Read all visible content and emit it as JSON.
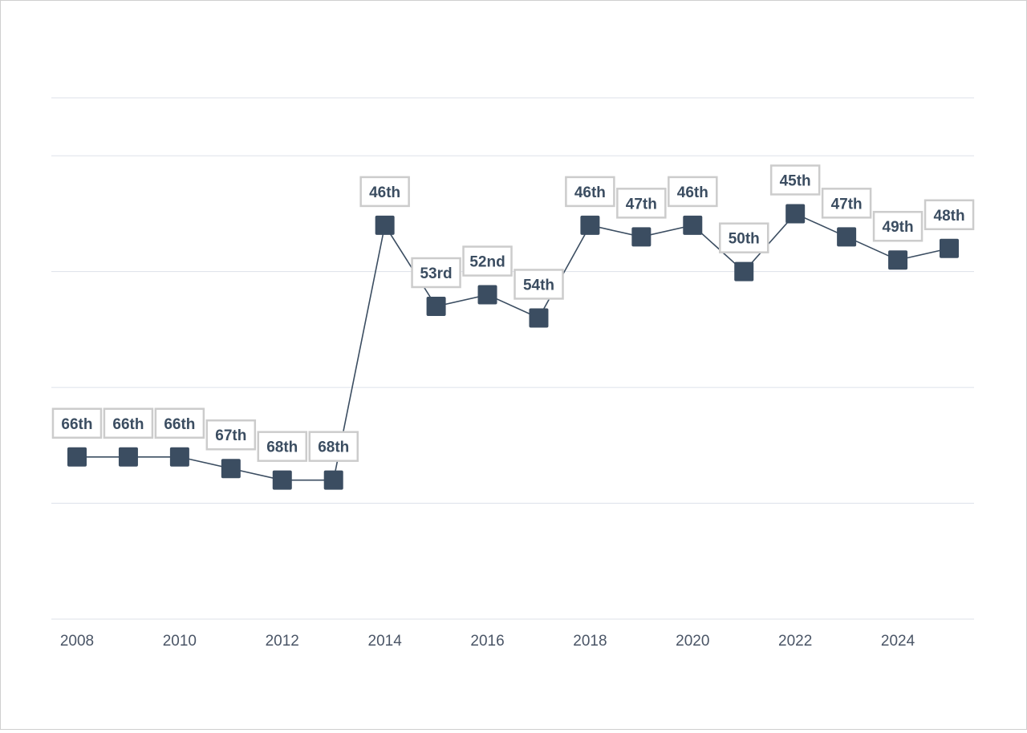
{
  "chart_data": {
    "type": "line",
    "title": "",
    "xlabel": "",
    "ylabel": "",
    "x": [
      2008,
      2009,
      2010,
      2011,
      2012,
      2013,
      2014,
      2015,
      2016,
      2017,
      2018,
      2019,
      2020,
      2021,
      2022,
      2023,
      2024,
      2025
    ],
    "values": [
      66,
      66,
      66,
      67,
      68,
      68,
      46,
      53,
      52,
      54,
      46,
      47,
      46,
      50,
      45,
      47,
      49,
      48
    ],
    "data_labels": [
      "66th",
      "66th",
      "66th",
      "67th",
      "68th",
      "68th",
      "46th",
      "53rd",
      "52nd",
      "54th",
      "46th",
      "47th",
      "46th",
      "50th",
      "45th",
      "47th",
      "49th",
      "48th"
    ],
    "x_ticks": [
      "2008",
      "2010",
      "2012",
      "2014",
      "2016",
      "2018",
      "2020",
      "2022",
      "2024"
    ],
    "ylim": [
      35,
      80
    ],
    "y_reversed": true,
    "y_gridlines": [
      35,
      40,
      50,
      60,
      70,
      80
    ],
    "grid": true,
    "legend": "none",
    "colors": {
      "marker": "#3b4d61",
      "line": "#3b4d61",
      "label_text": "#3b4d61",
      "label_border": "#cccccc",
      "grid": "#dde1ea",
      "tick_text": "#4a5566"
    }
  }
}
